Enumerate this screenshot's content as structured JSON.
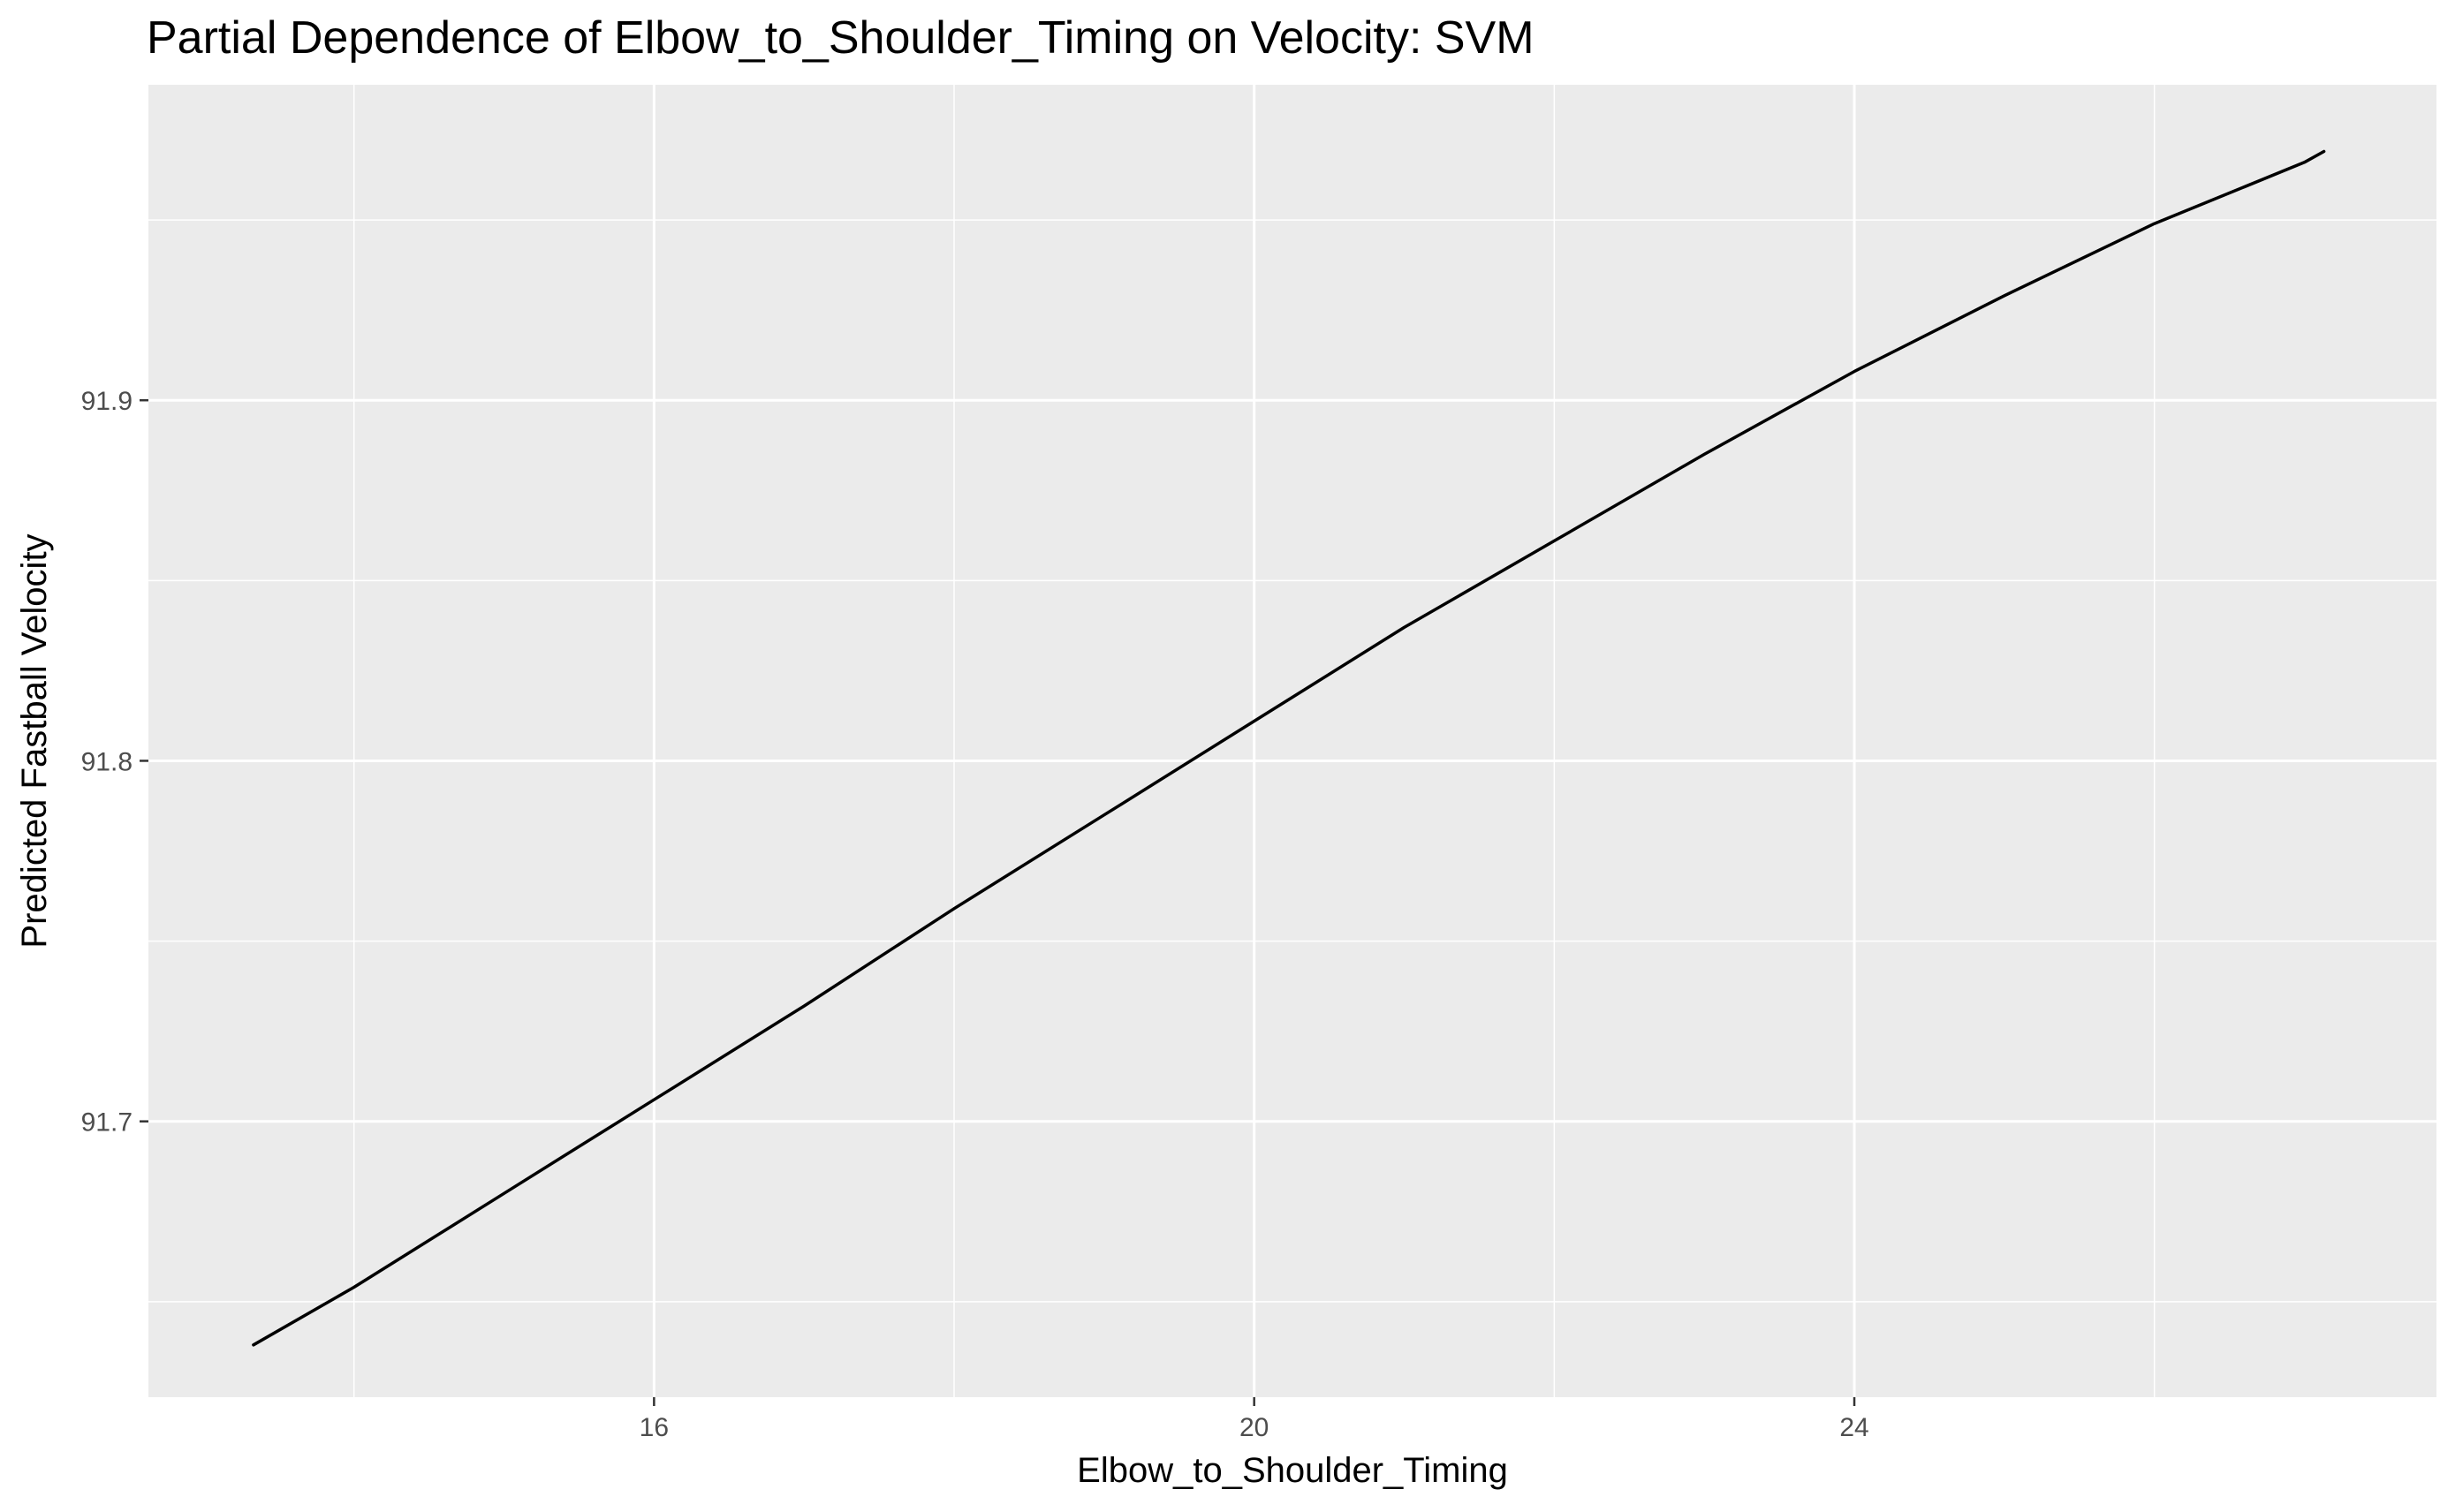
{
  "chart_data": {
    "type": "line",
    "title": "Partial Dependence of Elbow_to_Shoulder_Timing on Velocity: SVM",
    "xlabel": "Elbow_to_Shoulder_Timing",
    "ylabel": "Predicted Fastball Velocity",
    "xlim": [
      12.63,
      27.88
    ],
    "ylim": [
      91.6235,
      91.9875
    ],
    "xticks": [
      16,
      20,
      24
    ],
    "xtick_labels": [
      "16",
      "20",
      "24"
    ],
    "yticks": [
      91.7,
      91.8,
      91.9
    ],
    "ytick_labels": [
      "91.7",
      "91.8",
      "91.9"
    ],
    "x_minor": [
      14,
      18,
      22,
      26
    ],
    "y_minor": [
      91.65,
      91.75,
      91.85,
      91.95
    ],
    "grid": true,
    "legend": "none",
    "colors": {
      "panel": "#ebebeb",
      "grid": "#ffffff",
      "line": "#000000"
    },
    "series": [
      {
        "x": [
          13.33,
          14.0,
          15.0,
          16.0,
          17.0,
          18.0,
          19.0,
          20.0,
          21.0,
          22.0,
          23.0,
          24.0,
          25.0,
          26.0,
          27.0,
          27.13
        ],
        "values": [
          91.638,
          91.654,
          91.68,
          91.706,
          91.732,
          91.759,
          91.785,
          91.811,
          91.837,
          91.861,
          91.885,
          91.908,
          91.929,
          91.949,
          91.966,
          91.969
        ]
      }
    ]
  }
}
